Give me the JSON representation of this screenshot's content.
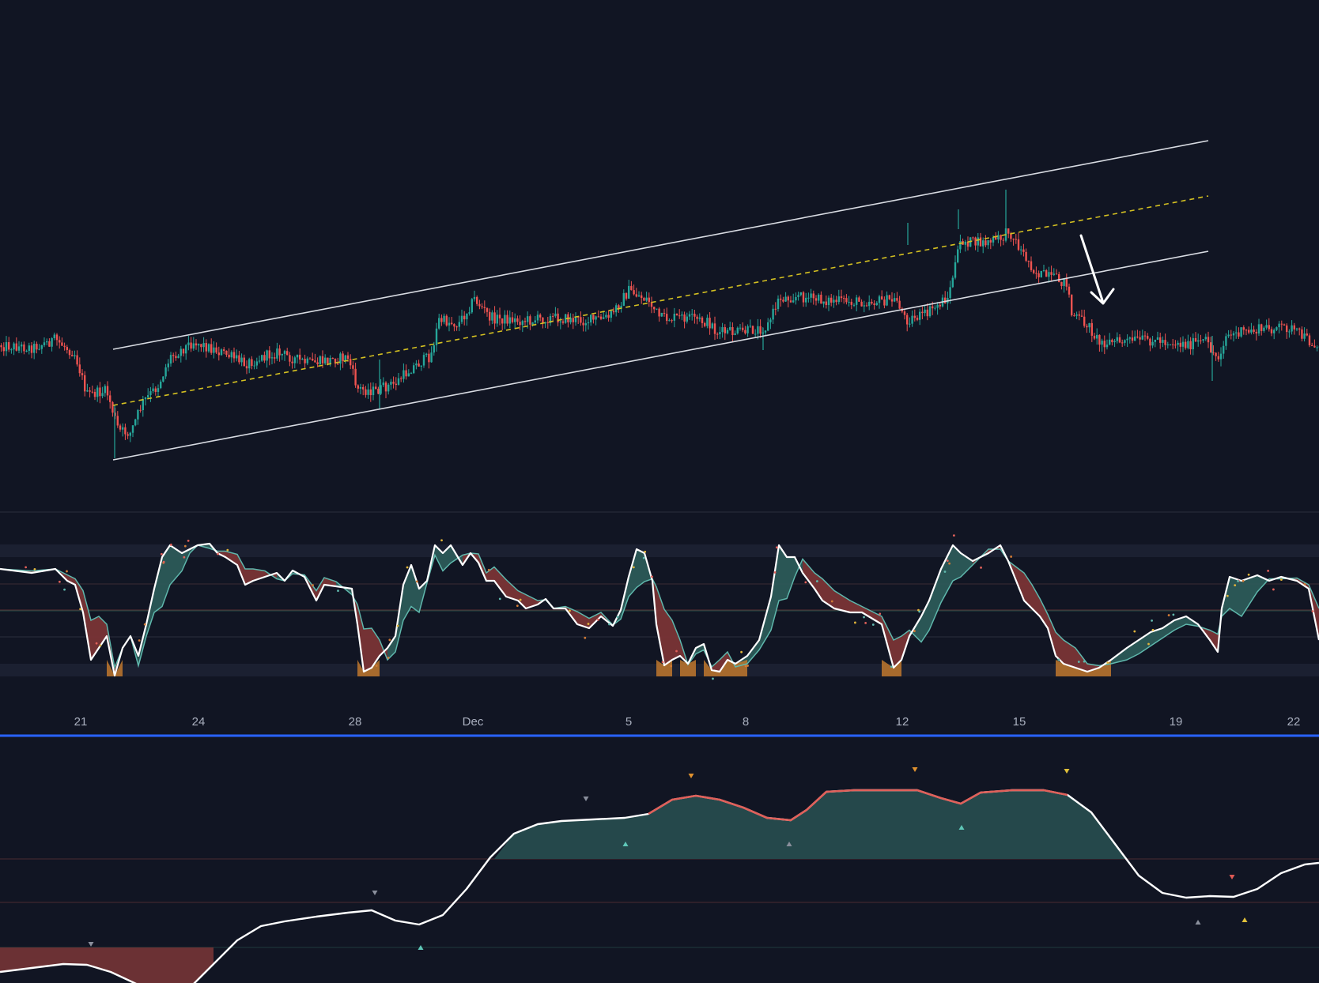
{
  "chart_data": [
    {
      "type": "candlestick",
      "panel": "price",
      "title": "",
      "trend_channel": {
        "upper": [
          [
            0,
            0.0
          ],
          [
            1,
            1.0
          ]
        ],
        "middle": "dashed",
        "lower": "solid"
      },
      "annotation": "down-arrow",
      "colors": {
        "up": "#26a69a",
        "down": "#ef5350",
        "channel": "#d8dbe2",
        "midline": "#d4c021",
        "arrow": "#ffffff"
      }
    },
    {
      "type": "area",
      "panel": "oscillator-1",
      "title": "",
      "bands": [
        "overbought",
        "upper",
        "middle",
        "lower",
        "oversold"
      ],
      "colors": {
        "line": "#ffffff",
        "bull_fill": "#2c5a58",
        "bear_fill": "#7a3436",
        "extreme_fill": "#c0782d",
        "signal": "#5fb7ac"
      }
    },
    {
      "type": "area",
      "panel": "oscillator-2",
      "title": "",
      "colors": {
        "line": "#ffffff",
        "bull_fill": "#25484b",
        "bear_fill": "#6b3134",
        "hot_line": "#e0605a"
      }
    }
  ],
  "x_axis": {
    "ticks": [
      "21",
      "24",
      "28",
      "Dec",
      "5",
      "8",
      "12",
      "15",
      "19",
      "22"
    ],
    "divider_color": "#2962ff"
  }
}
